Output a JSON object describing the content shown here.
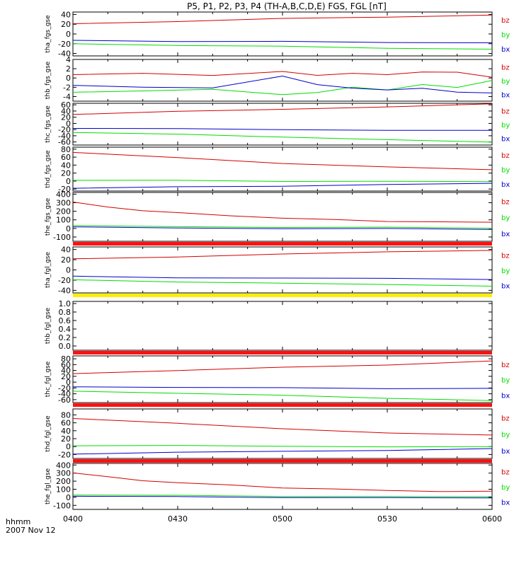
{
  "chart_data": {
    "type": "line",
    "title": "P5, P1, P2, P3, P4 (TH-A,B,C,D,E) FGS, FGL [nT]",
    "x_axis": {
      "ticks": [
        "0400",
        "0430",
        "0500",
        "0530",
        "0600"
      ],
      "tick_values": [
        0,
        30,
        60,
        90,
        120
      ],
      "range": [
        0,
        120
      ],
      "label_line1": "hhmm",
      "label_line2": "2007 Nov 12"
    },
    "colors": {
      "bz": "#d40000",
      "by": "#00dd00",
      "bx": "#0000cc"
    },
    "panels": [
      {
        "ylabel": "tha_fgs_gse",
        "ylim": [
          -45,
          45
        ],
        "ticks": [
          "-40",
          "-20",
          "0",
          "20",
          "40"
        ],
        "tick_values": [
          -40,
          -20,
          0,
          20,
          40
        ],
        "status_bar": null,
        "series": [
          {
            "name": "bz",
            "x": [
              0,
              30,
              60,
              90,
              120
            ],
            "y": [
              21,
              26,
              31,
              35,
              39
            ]
          },
          {
            "name": "by",
            "x": [
              0,
              30,
              60,
              90,
              120
            ],
            "y": [
              -20,
              -23,
              -26,
              -29,
              -31
            ]
          },
          {
            "name": "bx",
            "x": [
              0,
              30,
              60,
              90,
              120
            ],
            "y": [
              -13,
              -15,
              -16,
              -17,
              -18
            ]
          }
        ]
      },
      {
        "ylabel": "thb_fgs_gse",
        "ylim": [
          -5,
          4
        ],
        "ticks": [
          "-4",
          "-2",
          "0",
          "2",
          "4"
        ],
        "tick_values": [
          -4,
          -2,
          0,
          2,
          4
        ],
        "status_bar": null,
        "series": [
          {
            "name": "bz",
            "x": [
              0,
              20,
              40,
              60,
              70,
              80,
              90,
              100,
              110,
              120
            ],
            "y": [
              0.8,
              1,
              0.5,
              1.5,
              0.5,
              1,
              0.8,
              1.2,
              1.3,
              0.2
            ]
          },
          {
            "name": "by",
            "x": [
              0,
              20,
              40,
              60,
              70,
              80,
              90,
              100,
              110,
              120
            ],
            "y": [
              -3,
              -2.8,
              -2.5,
              -3.5,
              -3.2,
              -2,
              -2.5,
              -1.5,
              -2,
              -0.5
            ]
          },
          {
            "name": "bx",
            "x": [
              0,
              20,
              40,
              60,
              70,
              80,
              90,
              100,
              110,
              120
            ],
            "y": [
              -1.5,
              -2,
              -2.2,
              0.5,
              -1.5,
              -2.2,
              -2.5,
              -2.3,
              -3,
              -3.2
            ]
          }
        ]
      },
      {
        "ylabel": "thc_fgs_gse",
        "ylim": [
          -70,
          65
        ],
        "ticks": [
          "-60",
          "-40",
          "-20",
          "0",
          "20",
          "40",
          "60"
        ],
        "tick_values": [
          -60,
          -40,
          -20,
          0,
          20,
          40,
          60
        ],
        "status_bar": null,
        "series": [
          {
            "name": "bz",
            "x": [
              0,
              30,
              60,
              90,
              120
            ],
            "y": [
              30,
              38,
              46,
              54,
              62
            ]
          },
          {
            "name": "by",
            "x": [
              0,
              30,
              60,
              90,
              120
            ],
            "y": [
              -28,
              -36,
              -44,
              -52,
              -62
            ]
          },
          {
            "name": "bx",
            "x": [
              0,
              30,
              60,
              90,
              120
            ],
            "y": [
              -15,
              -18,
              -20,
              -22,
              -24
            ]
          }
        ]
      },
      {
        "ylabel": "thd_fgs_gse",
        "ylim": [
          -25,
          85
        ],
        "ticks": [
          "-20",
          "0",
          "20",
          "40",
          "60",
          "80"
        ],
        "tick_values": [
          -20,
          0,
          20,
          40,
          60,
          80
        ],
        "status_bar": null,
        "series": [
          {
            "name": "bz",
            "x": [
              0,
              30,
              60,
              90,
              120
            ],
            "y": [
              72,
              58,
              45,
              35,
              28
            ]
          },
          {
            "name": "by",
            "x": [
              0,
              30,
              60,
              90,
              120
            ],
            "y": [
              2,
              1,
              0,
              -1,
              -2
            ]
          },
          {
            "name": "bx",
            "x": [
              0,
              30,
              60,
              90,
              120
            ],
            "y": [
              -18,
              -15,
              -12,
              -9,
              -6
            ]
          }
        ]
      },
      {
        "ylabel": "the_fgs_gse",
        "ylim": [
          -150,
          420
        ],
        "ticks": [
          "-100",
          "0",
          "100",
          "200",
          "300",
          "400"
        ],
        "tick_values": [
          -100,
          0,
          100,
          200,
          300,
          400
        ],
        "status_bar": "#ff1010",
        "series": [
          {
            "name": "bz",
            "x": [
              0,
              10,
              20,
              30,
              45,
              60,
              75,
              90,
              105,
              120
            ],
            "y": [
              305,
              250,
              210,
              180,
              150,
              120,
              100,
              85,
              75,
              70
            ]
          },
          {
            "name": "by",
            "x": [
              0,
              30,
              60,
              90,
              120
            ],
            "y": [
              30,
              20,
              15,
              10,
              5
            ]
          },
          {
            "name": "bx",
            "x": [
              0,
              30,
              60,
              90,
              120
            ],
            "y": [
              15,
              5,
              0,
              -5,
              -10
            ]
          }
        ]
      },
      {
        "ylabel": "tha_fgl_gse",
        "ylim": [
          -45,
          45
        ],
        "ticks": [
          "-40",
          "-20",
          "0",
          "20",
          "40"
        ],
        "tick_values": [
          -40,
          -20,
          0,
          20,
          40
        ],
        "status_bar": "#ffee00",
        "series": [
          {
            "name": "bz",
            "x": [
              0,
              30,
              60,
              90,
              120
            ],
            "y": [
              21,
              26,
              31,
              35,
              39
            ]
          },
          {
            "name": "by",
            "x": [
              0,
              30,
              60,
              90,
              120
            ],
            "y": [
              -20,
              -23,
              -26,
              -29,
              -31
            ]
          },
          {
            "name": "bx",
            "x": [
              0,
              30,
              60,
              90,
              120
            ],
            "y": [
              -13,
              -15,
              -16,
              -17,
              -18
            ]
          }
        ]
      },
      {
        "ylabel": "thb_fgl_gse",
        "ylim": [
          -0.1,
          1.05
        ],
        "ticks": [
          "0.0",
          "0.2",
          "0.4",
          "0.6",
          "0.8",
          "1.0"
        ],
        "tick_values": [
          0,
          0.2,
          0.4,
          0.6,
          0.8,
          1.0
        ],
        "status_bar": "#ff1010",
        "series": []
      },
      {
        "ylabel": "thc_fgl_gse",
        "ylim": [
          -70,
          90
        ],
        "ticks": [
          "-60",
          "-40",
          "-20",
          "0",
          "20",
          "40",
          "60",
          "80"
        ],
        "tick_values": [
          -60,
          -40,
          -20,
          0,
          20,
          40,
          60,
          80
        ],
        "status_bar": "#ff1010",
        "series": [
          {
            "name": "bz",
            "x": [
              0,
              30,
              60,
              90,
              120
            ],
            "y": [
              30,
              40,
              50,
              60,
              72
            ]
          },
          {
            "name": "by",
            "x": [
              0,
              30,
              60,
              90,
              120
            ],
            "y": [
              -30,
              -38,
              -46,
              -54,
              -64
            ]
          },
          {
            "name": "bx",
            "x": [
              0,
              30,
              60,
              90,
              120
            ],
            "y": [
              -15,
              -18,
              -20,
              -21,
              -22
            ]
          }
        ]
      },
      {
        "ylabel": "thd_fgl_gse",
        "ylim": [
          -30,
          95
        ],
        "ticks": [
          "-20",
          "0",
          "20",
          "40",
          "60",
          "80"
        ],
        "tick_values": [
          -20,
          0,
          20,
          40,
          60,
          80
        ],
        "status_bar": "#ff1010",
        "series": [
          {
            "name": "bz",
            "x": [
              0,
              30,
              60,
              90,
              120
            ],
            "y": [
              72,
              58,
              45,
              35,
              28
            ]
          },
          {
            "name": "by",
            "x": [
              0,
              30,
              60,
              90,
              120
            ],
            "y": [
              3,
              2,
              1,
              0,
              -1
            ]
          },
          {
            "name": "bx",
            "x": [
              0,
              30,
              60,
              90,
              120
            ],
            "y": [
              -18,
              -15,
              -12,
              -9,
              -6
            ]
          }
        ]
      },
      {
        "ylabel": "the_fgl_gse",
        "ylim": [
          -150,
          420
        ],
        "ticks": [
          "-100",
          "0",
          "100",
          "200",
          "300",
          "400"
        ],
        "tick_values": [
          -100,
          0,
          100,
          200,
          300,
          400
        ],
        "status_bar": null,
        "series": [
          {
            "name": "bz",
            "x": [
              0,
              10,
              20,
              30,
              45,
              60,
              75,
              90,
              105,
              120
            ],
            "y": [
              305,
              250,
              210,
              180,
              150,
              120,
              100,
              85,
              75,
              70
            ]
          },
          {
            "name": "by",
            "x": [
              0,
              30,
              60,
              90,
              120
            ],
            "y": [
              30,
              20,
              15,
              10,
              5
            ]
          },
          {
            "name": "bx",
            "x": [
              0,
              30,
              60,
              90,
              120
            ],
            "y": [
              15,
              5,
              0,
              -5,
              -10
            ]
          }
        ]
      }
    ]
  }
}
